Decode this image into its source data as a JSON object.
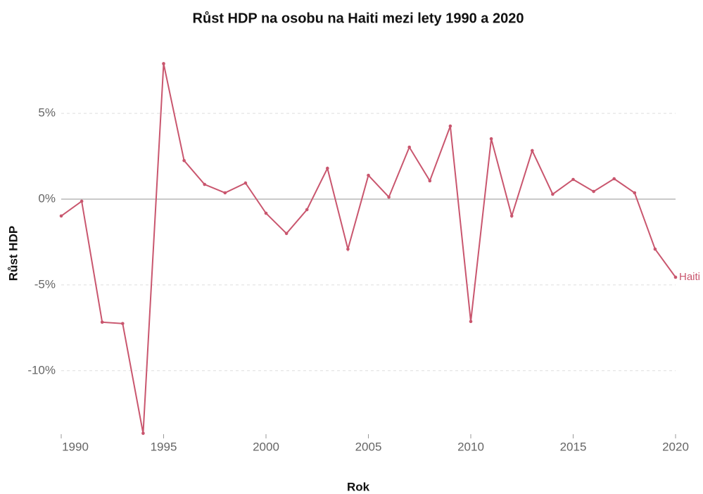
{
  "chart_data": {
    "type": "line",
    "title": "Růst HDP na osobu na Haiti mezi lety 1990 a 2020",
    "x_label": "Rok",
    "y_label": "Růst HDP",
    "x": [
      1990,
      1991,
      1992,
      1993,
      1994,
      1995,
      1996,
      1997,
      1998,
      1999,
      2000,
      2001,
      2002,
      2003,
      2004,
      2005,
      2006,
      2007,
      2008,
      2009,
      2010,
      2011,
      2012,
      2013,
      2014,
      2015,
      2016,
      2017,
      2018,
      2019,
      2020
    ],
    "series": [
      {
        "name": "Haiti",
        "color": "#c9566e",
        "values": [
          -0.98,
          -0.12,
          -7.17,
          -7.25,
          -13.65,
          7.9,
          2.25,
          0.86,
          0.37,
          0.94,
          -0.82,
          -2.0,
          -0.61,
          1.8,
          -2.91,
          1.39,
          0.12,
          3.03,
          1.07,
          4.26,
          -7.13,
          3.52,
          -0.98,
          2.83,
          0.29,
          1.15,
          0.45,
          1.19,
          0.37,
          -2.91,
          -4.55
        ]
      }
    ],
    "xlim": [
      1990,
      2020
    ],
    "xticks": [
      1990,
      1995,
      2000,
      2005,
      2010,
      2015,
      2020
    ],
    "ylim": [
      -13.7,
      8
    ],
    "yticks": [
      {
        "value": -10,
        "label": "-10%"
      },
      {
        "value": -5,
        "label": "-5%"
      },
      {
        "value": 0,
        "label": "0%"
      },
      {
        "value": 5,
        "label": "5%"
      }
    ],
    "grid": true
  }
}
